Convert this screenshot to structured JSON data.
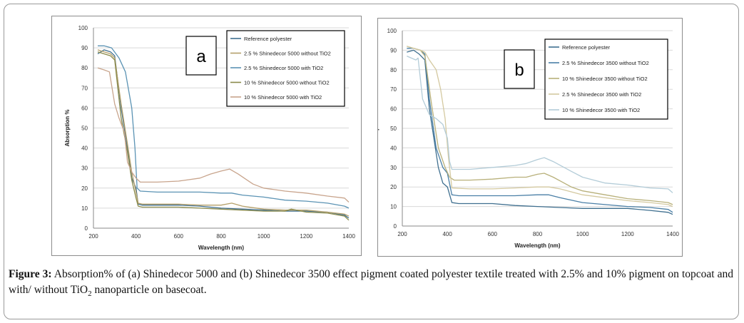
{
  "caption": {
    "label": "Figure 3:",
    "text_1": "Absorption% of (a) Shinedecor 5000 and (b) Shinedecor 3500 effect pigment coated polyester textile treated with 2.5% and 10% pigment on topcoat and with/ without TiO",
    "subscript": "2",
    "text_2": " nanoparticle on basecoat."
  },
  "chart_data": [
    {
      "type": "line",
      "panel_label": "a",
      "xlabel": "Wavelength (nm)",
      "ylabel": "Absorption %",
      "xlim": [
        200,
        1400
      ],
      "ylim": [
        0,
        100
      ],
      "x_ticks": [
        200,
        400,
        600,
        800,
        1000,
        1200,
        1400
      ],
      "y_ticks": [
        0,
        10,
        20,
        30,
        40,
        50,
        60,
        70,
        80,
        90,
        100
      ],
      "grid": "horizontal",
      "legend_position": "top-right",
      "series": [
        {
          "name": "Reference polyester",
          "color": "#3f6f8f",
          "points": [
            [
              220,
              87
            ],
            [
              250,
              89
            ],
            [
              280,
              88
            ],
            [
              300,
              86
            ],
            [
              330,
              60
            ],
            [
              360,
              40
            ],
            [
              380,
              25
            ],
            [
              400,
              20
            ],
            [
              410,
              12
            ],
            [
              430,
              11.5
            ],
            [
              500,
              11.5
            ],
            [
              600,
              11.5
            ],
            [
              700,
              11
            ],
            [
              800,
              10
            ],
            [
              900,
              9.5
            ],
            [
              1000,
              9
            ],
            [
              1100,
              8.5
            ],
            [
              1200,
              8.5
            ],
            [
              1300,
              8
            ],
            [
              1380,
              6.5
            ],
            [
              1400,
              5
            ]
          ]
        },
        {
          "name": "2.5 % Shinedecor 5000 without TiO2",
          "color": "#b5a06a",
          "points": [
            [
              220,
              89
            ],
            [
              250,
              88
            ],
            [
              280,
              87
            ],
            [
              300,
              85
            ],
            [
              330,
              62
            ],
            [
              360,
              42
            ],
            [
              380,
              28
            ],
            [
              400,
              18
            ],
            [
              410,
              12.5
            ],
            [
              430,
              12
            ],
            [
              500,
              12
            ],
            [
              600,
              12
            ],
            [
              700,
              11.5
            ],
            [
              800,
              11.5
            ],
            [
              850,
              12.5
            ],
            [
              900,
              11
            ],
            [
              1000,
              9.5
            ],
            [
              1100,
              9
            ],
            [
              1200,
              9
            ],
            [
              1300,
              8
            ],
            [
              1380,
              7
            ],
            [
              1400,
              6
            ]
          ]
        },
        {
          "name": "2.5 % Shinedecor 5000 with TiO2",
          "color": "#5b93b4",
          "points": [
            [
              220,
              91
            ],
            [
              250,
              91
            ],
            [
              285,
              90
            ],
            [
              320,
              85
            ],
            [
              350,
              78
            ],
            [
              380,
              60
            ],
            [
              395,
              40
            ],
            [
              405,
              20
            ],
            [
              420,
              18.5
            ],
            [
              500,
              18
            ],
            [
              600,
              18
            ],
            [
              700,
              18
            ],
            [
              800,
              17.5
            ],
            [
              850,
              17.5
            ],
            [
              900,
              16.5
            ],
            [
              1000,
              15.5
            ],
            [
              1100,
              14
            ],
            [
              1200,
              13.5
            ],
            [
              1300,
              12.5
            ],
            [
              1380,
              11
            ],
            [
              1400,
              10
            ]
          ]
        },
        {
          "name": "10 % Shinedecor 5000 without TiO2",
          "color": "#8a8a4a",
          "points": [
            [
              220,
              88
            ],
            [
              250,
              87
            ],
            [
              280,
              86
            ],
            [
              300,
              84
            ],
            [
              330,
              55
            ],
            [
              360,
              38
            ],
            [
              380,
              24
            ],
            [
              400,
              15
            ],
            [
              410,
              11
            ],
            [
              430,
              10.5
            ],
            [
              500,
              10.5
            ],
            [
              600,
              10.5
            ],
            [
              700,
              10
            ],
            [
              800,
              9.5
            ],
            [
              900,
              9
            ],
            [
              1000,
              8.5
            ],
            [
              1100,
              8.5
            ],
            [
              1130,
              9.5
            ],
            [
              1200,
              8
            ],
            [
              1300,
              7.5
            ],
            [
              1380,
              6
            ],
            [
              1400,
              4
            ]
          ]
        },
        {
          "name": "10 % Shinedecor 5000 with TiO2",
          "color": "#c8a48c",
          "points": [
            [
              220,
              80
            ],
            [
              250,
              79
            ],
            [
              275,
              78
            ],
            [
              300,
              62
            ],
            [
              320,
              55
            ],
            [
              345,
              48
            ],
            [
              360,
              33
            ],
            [
              380,
              28
            ],
            [
              400,
              25
            ],
            [
              420,
              23
            ],
            [
              500,
              23
            ],
            [
              600,
              23.5
            ],
            [
              700,
              25
            ],
            [
              750,
              27
            ],
            [
              800,
              28.5
            ],
            [
              840,
              29.5
            ],
            [
              880,
              27
            ],
            [
              950,
              22
            ],
            [
              1000,
              20
            ],
            [
              1100,
              18.5
            ],
            [
              1200,
              17.5
            ],
            [
              1300,
              16
            ],
            [
              1380,
              15
            ],
            [
              1400,
              13
            ]
          ]
        }
      ]
    },
    {
      "type": "line",
      "panel_label": "b",
      "xlabel": "Wavelength (nm)",
      "ylabel": "Absorption %",
      "xlim": [
        200,
        1400
      ],
      "ylim": [
        0,
        100
      ],
      "x_ticks": [
        200,
        400,
        600,
        800,
        1000,
        1200,
        1400
      ],
      "y_ticks": [
        0,
        10,
        20,
        30,
        40,
        50,
        60,
        70,
        80,
        90,
        100
      ],
      "grid": "horizontal",
      "legend_position": "top-right",
      "series": [
        {
          "name": "Reference polyester",
          "color": "#3f6f8f",
          "points": [
            [
              220,
              89
            ],
            [
              250,
              90
            ],
            [
              275,
              88
            ],
            [
              300,
              85
            ],
            [
              320,
              60
            ],
            [
              360,
              30
            ],
            [
              380,
              22
            ],
            [
              400,
              20
            ],
            [
              420,
              12
            ],
            [
              450,
              11.5
            ],
            [
              500,
              11.5
            ],
            [
              600,
              11.5
            ],
            [
              700,
              10.5
            ],
            [
              800,
              10
            ],
            [
              900,
              9.5
            ],
            [
              1000,
              9
            ],
            [
              1100,
              9
            ],
            [
              1200,
              9
            ],
            [
              1300,
              8
            ],
            [
              1380,
              7
            ],
            [
              1400,
              6
            ]
          ]
        },
        {
          "name": "2.5 % Shinedecor 3500 without TiO2",
          "color": "#4a7fa6",
          "points": [
            [
              220,
              91
            ],
            [
              250,
              91
            ],
            [
              280,
              90
            ],
            [
              300,
              88
            ],
            [
              320,
              65
            ],
            [
              350,
              40
            ],
            [
              380,
              30
            ],
            [
              400,
              27
            ],
            [
              420,
              16
            ],
            [
              450,
              15.5
            ],
            [
              500,
              15.5
            ],
            [
              600,
              15.5
            ],
            [
              700,
              15.5
            ],
            [
              800,
              16
            ],
            [
              850,
              16
            ],
            [
              900,
              14.5
            ],
            [
              1000,
              12
            ],
            [
              1100,
              11
            ],
            [
              1200,
              10
            ],
            [
              1300,
              9.5
            ],
            [
              1380,
              8.5
            ],
            [
              1400,
              7
            ]
          ]
        },
        {
          "name": "10 % Shinedecor 3500 without TiO2",
          "color": "#b8b07a",
          "points": [
            [
              220,
              92
            ],
            [
              250,
              91
            ],
            [
              280,
              90
            ],
            [
              300,
              87
            ],
            [
              330,
              62
            ],
            [
              360,
              40
            ],
            [
              390,
              30
            ],
            [
              410,
              25
            ],
            [
              430,
              23.5
            ],
            [
              500,
              23.5
            ],
            [
              600,
              24
            ],
            [
              700,
              25
            ],
            [
              750,
              25
            ],
            [
              800,
              26.5
            ],
            [
              830,
              27
            ],
            [
              870,
              25
            ],
            [
              950,
              20
            ],
            [
              1000,
              18
            ],
            [
              1100,
              16
            ],
            [
              1200,
              14
            ],
            [
              1300,
              13
            ],
            [
              1380,
              12
            ],
            [
              1400,
              11
            ]
          ]
        },
        {
          "name": "2.5 % Shinedecor 3500 with TiO2",
          "color": "#d4c9a0",
          "points": [
            [
              220,
              92
            ],
            [
              250,
              91
            ],
            [
              280,
              90
            ],
            [
              300,
              89
            ],
            [
              320,
              85
            ],
            [
              350,
              80
            ],
            [
              370,
              70
            ],
            [
              390,
              55
            ],
            [
              405,
              35
            ],
            [
              420,
              19.5
            ],
            [
              500,
              19
            ],
            [
              600,
              19
            ],
            [
              700,
              19.5
            ],
            [
              800,
              20
            ],
            [
              850,
              20
            ],
            [
              900,
              19
            ],
            [
              1000,
              16
            ],
            [
              1100,
              14.5
            ],
            [
              1200,
              13
            ],
            [
              1300,
              12
            ],
            [
              1380,
              11
            ],
            [
              1400,
              10
            ]
          ]
        },
        {
          "name": "10 % Shinedecor 3500 with TiO2",
          "color": "#b3ccd8",
          "points": [
            [
              220,
              87
            ],
            [
              240,
              86
            ],
            [
              260,
              85
            ],
            [
              270,
              86
            ],
            [
              290,
              65
            ],
            [
              320,
              57
            ],
            [
              350,
              55
            ],
            [
              380,
              52
            ],
            [
              400,
              45
            ],
            [
              410,
              33
            ],
            [
              420,
              29
            ],
            [
              500,
              29
            ],
            [
              600,
              30
            ],
            [
              700,
              31
            ],
            [
              750,
              32
            ],
            [
              800,
              34
            ],
            [
              830,
              35
            ],
            [
              870,
              33
            ],
            [
              950,
              28
            ],
            [
              1000,
              25
            ],
            [
              1100,
              22
            ],
            [
              1200,
              21
            ],
            [
              1300,
              19.5
            ],
            [
              1380,
              19
            ],
            [
              1400,
              17
            ]
          ]
        }
      ]
    }
  ]
}
